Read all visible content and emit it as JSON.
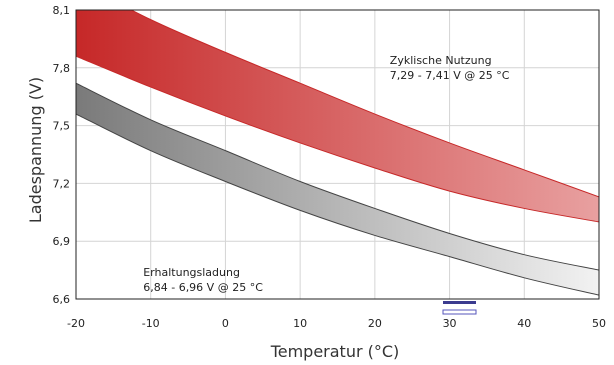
{
  "chart_data": {
    "type": "area",
    "title": "",
    "xlabel": "Temperatur (°C)",
    "ylabel": "Ladespannung (V)",
    "xlim": [
      -20,
      50
    ],
    "ylim": [
      6.6,
      8.1
    ],
    "grid": true,
    "x_ticks": [
      "-20",
      "-10",
      "0",
      "10",
      "20",
      "30",
      "40",
      "50"
    ],
    "y_ticks": [
      "6,6",
      "6,9",
      "7,2",
      "7,5",
      "7,8",
      "8,1"
    ],
    "series": [
      {
        "x": [
          -20,
          -10,
          0,
          10,
          20,
          30,
          40,
          50
        ],
        "lower": [
          7.86,
          7.7,
          7.55,
          7.41,
          7.28,
          7.16,
          7.07,
          7.0
        ],
        "upper": [
          8.25,
          8.05,
          7.88,
          7.72,
          7.56,
          7.41,
          7.27,
          7.13
        ],
        "color_dark": "#c62828",
        "color_light": "#e8a0a0",
        "stroke": "#c62828"
      },
      {
        "x": [
          -20,
          -10,
          0,
          10,
          20,
          30,
          40,
          50
        ],
        "lower": [
          7.56,
          7.37,
          7.21,
          7.06,
          6.93,
          6.82,
          6.71,
          6.62
        ],
        "upper": [
          7.72,
          7.53,
          7.37,
          7.21,
          7.07,
          6.94,
          6.83,
          6.75
        ],
        "color_dark": "#7a7a7a",
        "color_light": "#f2f2f2",
        "stroke": "#444444"
      }
    ],
    "annotations": [
      {
        "lines": [
          "Zyklische Nutzung",
          "7,29 - 7,41 V @ 25 °C"
        ],
        "at": [
          22,
          7.82
        ]
      },
      {
        "lines": [
          "Erhaltungsladung",
          "6,84 - 6,96 V @ 25 °C"
        ],
        "at": [
          -11,
          6.72
        ]
      }
    ]
  }
}
